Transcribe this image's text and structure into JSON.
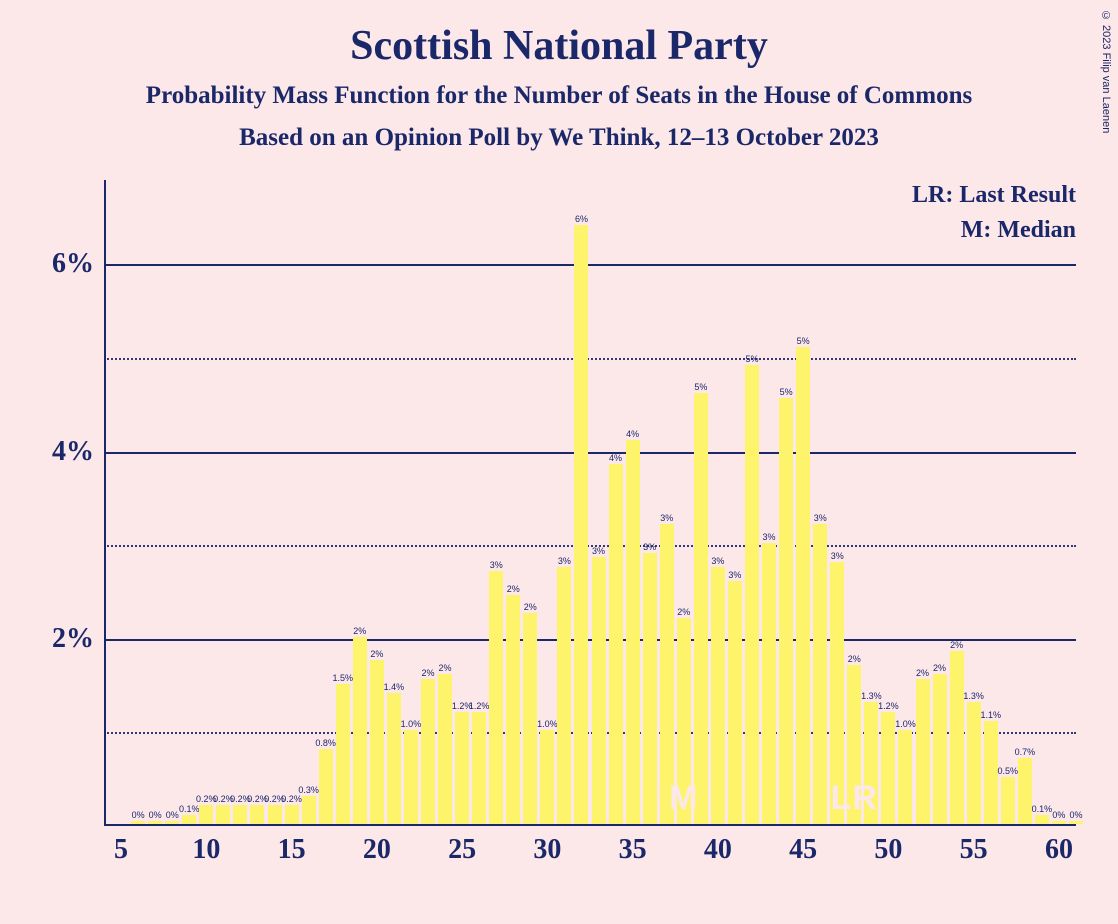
{
  "copyright": "© 2023 Filip van Laenen",
  "title": "Scottish National Party",
  "subtitle1": "Probability Mass Function for the Number of Seats in the House of Commons",
  "subtitle2": "Based on an Opinion Poll by We Think, 12–13 October 2023",
  "legend": {
    "lr": "LR: Last Result",
    "m": "M: Median"
  },
  "chart": {
    "type": "bar",
    "background_color": "#fce7e9",
    "bar_color": "#fdf46b",
    "axis_color": "#1a2769",
    "text_color": "#1a2769",
    "marker_color": "#fce7e9",
    "y_max": 6.9,
    "y_ticks_major": [
      2,
      4,
      6
    ],
    "y_ticks_minor": [
      1,
      3,
      5
    ],
    "y_tick_labels": [
      "2%",
      "4%",
      "6%"
    ],
    "x_min": 5,
    "x_max": 60,
    "x_ticks": [
      5,
      10,
      15,
      20,
      25,
      30,
      35,
      40,
      45,
      50,
      55,
      60
    ],
    "bars": [
      {
        "x": 6,
        "v": 0.03,
        "lbl": "0%"
      },
      {
        "x": 7,
        "v": 0.03,
        "lbl": "0%"
      },
      {
        "x": 8,
        "v": 0.03,
        "lbl": "0%"
      },
      {
        "x": 9,
        "v": 0.1,
        "lbl": "0.1%"
      },
      {
        "x": 10,
        "v": 0.2,
        "lbl": "0.2%"
      },
      {
        "x": 11,
        "v": 0.2,
        "lbl": "0.2%"
      },
      {
        "x": 12,
        "v": 0.2,
        "lbl": "0.2%"
      },
      {
        "x": 13,
        "v": 0.2,
        "lbl": "0.2%"
      },
      {
        "x": 14,
        "v": 0.2,
        "lbl": "0.2%"
      },
      {
        "x": 15,
        "v": 0.2,
        "lbl": "0.2%"
      },
      {
        "x": 16,
        "v": 0.3,
        "lbl": "0.3%"
      },
      {
        "x": 17,
        "v": 0.8,
        "lbl": "0.8%"
      },
      {
        "x": 18,
        "v": 1.5,
        "lbl": "1.5%"
      },
      {
        "x": 19,
        "v": 2.0,
        "lbl": "2%"
      },
      {
        "x": 20,
        "v": 1.75,
        "lbl": "2%"
      },
      {
        "x": 21,
        "v": 1.4,
        "lbl": "1.4%"
      },
      {
        "x": 22,
        "v": 1.0,
        "lbl": "1.0%"
      },
      {
        "x": 23,
        "v": 1.55,
        "lbl": "2%"
      },
      {
        "x": 24,
        "v": 1.6,
        "lbl": "2%"
      },
      {
        "x": 25,
        "v": 1.2,
        "lbl": "1.2%"
      },
      {
        "x": 26,
        "v": 1.2,
        "lbl": "1.2%"
      },
      {
        "x": 27,
        "v": 2.7,
        "lbl": "3%"
      },
      {
        "x": 28,
        "v": 2.45,
        "lbl": "2%"
      },
      {
        "x": 29,
        "v": 2.25,
        "lbl": "2%"
      },
      {
        "x": 30,
        "v": 1.0,
        "lbl": "1.0%"
      },
      {
        "x": 31,
        "v": 2.75,
        "lbl": "3%"
      },
      {
        "x": 32,
        "v": 6.4,
        "lbl": "6%"
      },
      {
        "x": 33,
        "v": 2.85,
        "lbl": "3%"
      },
      {
        "x": 34,
        "v": 3.85,
        "lbl": "4%"
      },
      {
        "x": 35,
        "v": 4.1,
        "lbl": "4%"
      },
      {
        "x": 36,
        "v": 2.9,
        "lbl": "3%"
      },
      {
        "x": 37,
        "v": 3.2,
        "lbl": "3%"
      },
      {
        "x": 38,
        "v": 2.2,
        "lbl": "2%"
      },
      {
        "x": 39,
        "v": 4.6,
        "lbl": "5%"
      },
      {
        "x": 40,
        "v": 2.75,
        "lbl": "3%"
      },
      {
        "x": 41,
        "v": 2.6,
        "lbl": "3%"
      },
      {
        "x": 42,
        "v": 4.9,
        "lbl": "5%"
      },
      {
        "x": 43,
        "v": 3.0,
        "lbl": "3%"
      },
      {
        "x": 44,
        "v": 4.55,
        "lbl": "5%"
      },
      {
        "x": 45,
        "v": 5.1,
        "lbl": "5%"
      },
      {
        "x": 46,
        "v": 3.2,
        "lbl": "3%"
      },
      {
        "x": 47,
        "v": 2.8,
        "lbl": "3%"
      },
      {
        "x": 48,
        "v": 1.7,
        "lbl": "2%"
      },
      {
        "x": 49,
        "v": 1.3,
        "lbl": "1.3%"
      },
      {
        "x": 50,
        "v": 1.2,
        "lbl": "1.2%"
      },
      {
        "x": 51,
        "v": 1.0,
        "lbl": "1.0%"
      },
      {
        "x": 52,
        "v": 1.55,
        "lbl": "2%"
      },
      {
        "x": 53,
        "v": 1.6,
        "lbl": "2%"
      },
      {
        "x": 54,
        "v": 1.85,
        "lbl": "2%"
      },
      {
        "x": 55,
        "v": 1.3,
        "lbl": "1.3%"
      },
      {
        "x": 56,
        "v": 1.1,
        "lbl": "1.1%"
      },
      {
        "x": 57,
        "v": 0.5,
        "lbl": "0.5%"
      },
      {
        "x": 58,
        "v": 0.7,
        "lbl": "0.7%"
      },
      {
        "x": 59,
        "v": 0.1,
        "lbl": "0.1%"
      },
      {
        "x": 60,
        "v": 0.03,
        "lbl": "0%"
      },
      {
        "x": 61,
        "v": 0.03,
        "lbl": "0%"
      }
    ],
    "markers": [
      {
        "label": "M",
        "x": 38
      },
      {
        "label": "LR",
        "x": 48
      }
    ]
  }
}
